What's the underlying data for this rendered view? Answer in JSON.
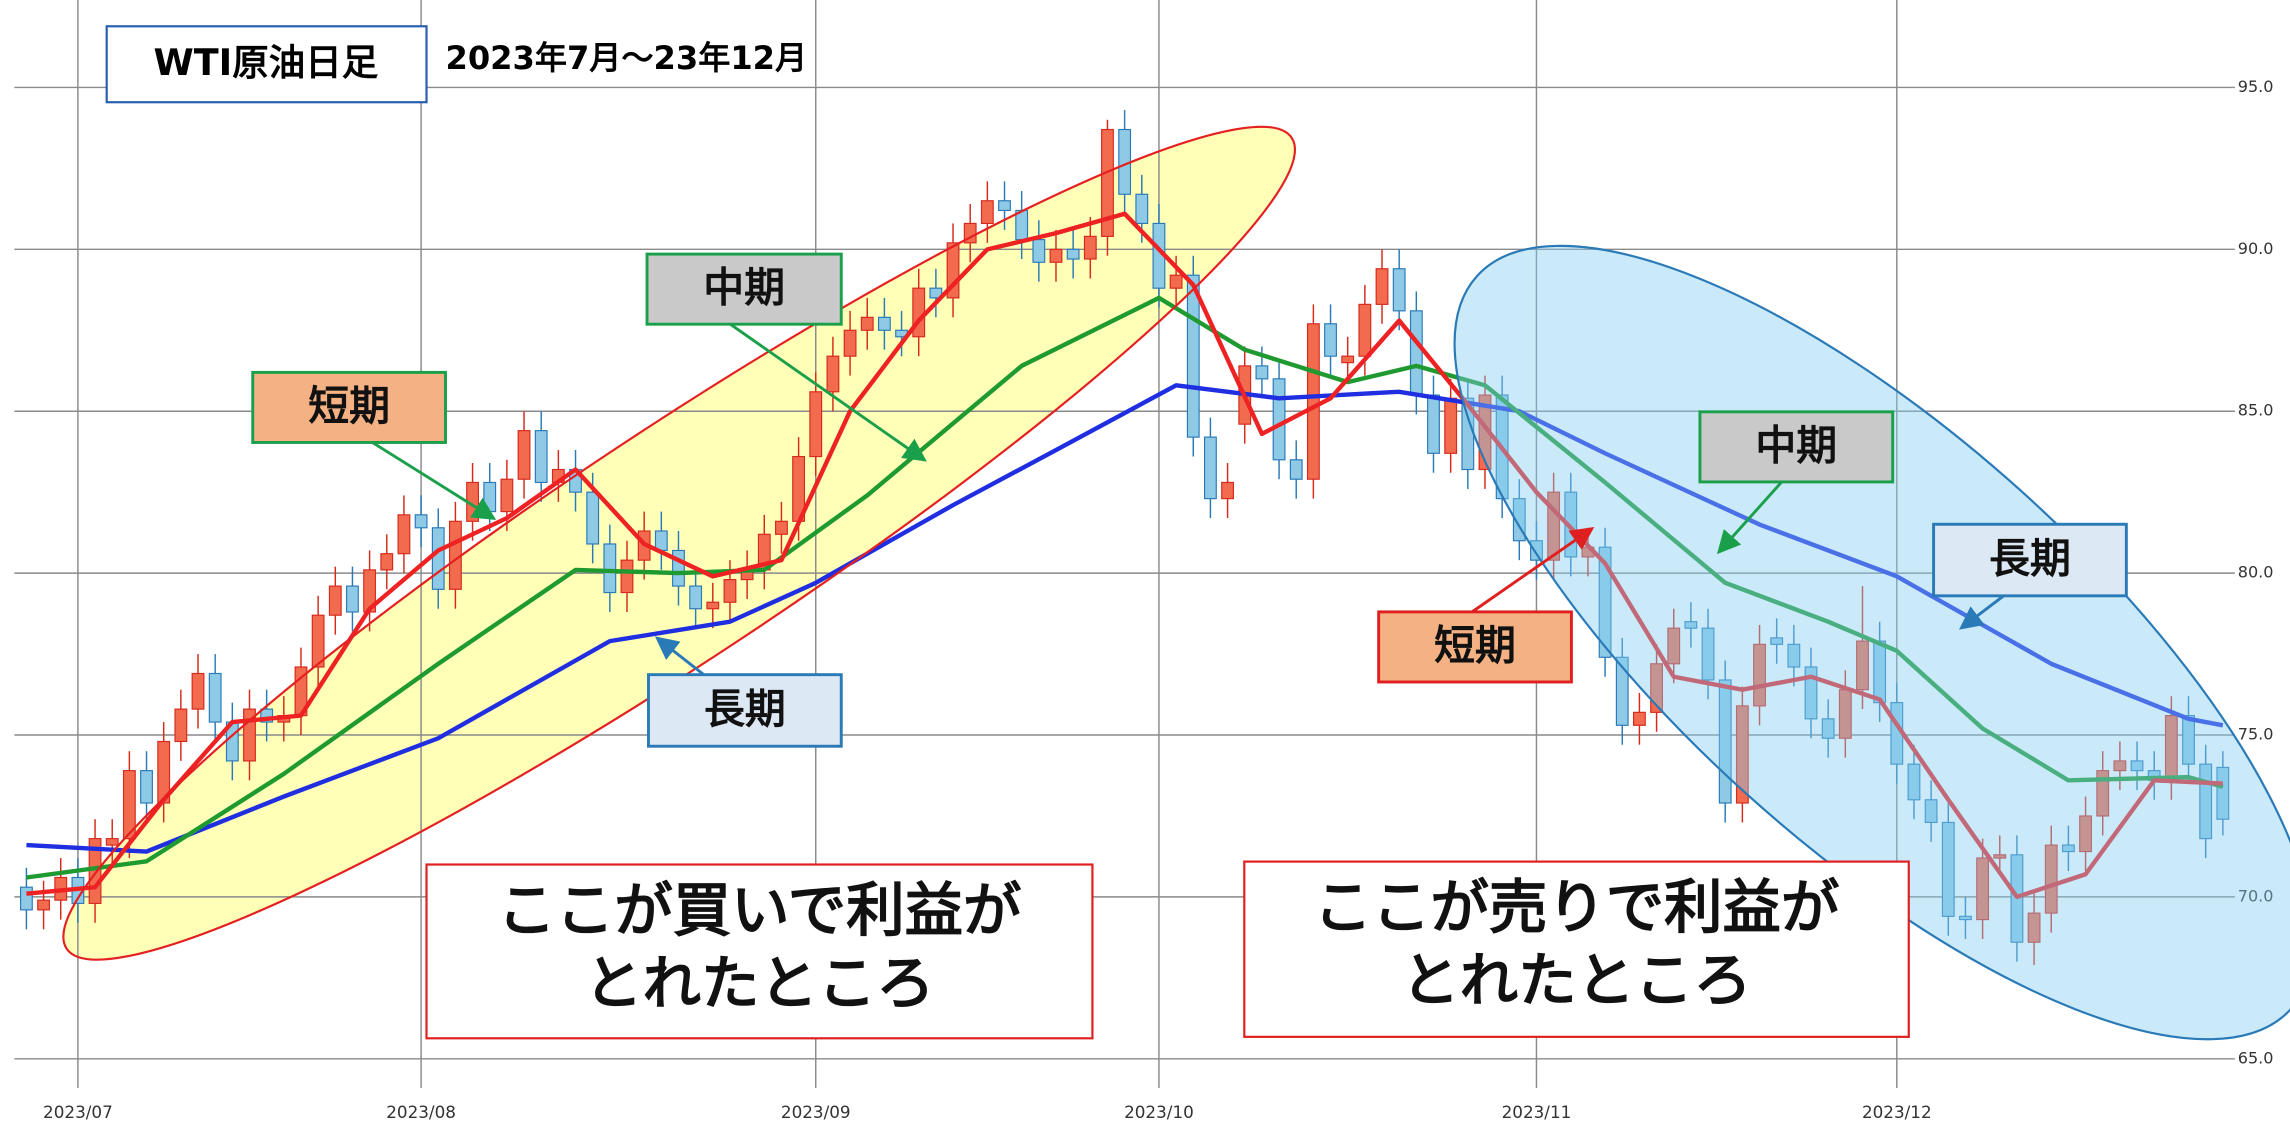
{
  "chart_data": {
    "type": "candlestick",
    "title": "WTI原油日足",
    "subtitle": "2023年7月～23年12月",
    "xlim": [
      -0.7,
      128.7
    ],
    "ylim": [
      64.1,
      97.7
    ],
    "xticks": [
      {
        "value": 3,
        "label": "2023/07"
      },
      {
        "value": 23,
        "label": "2023/08"
      },
      {
        "value": 46,
        "label": "2023/09"
      },
      {
        "value": 66,
        "label": "2023/10"
      },
      {
        "value": 88,
        "label": "2023/11"
      },
      {
        "value": 109,
        "label": "2023/12"
      }
    ],
    "yticks": [
      {
        "value": 65,
        "label": "65.0"
      },
      {
        "value": 70,
        "label": "70.0"
      },
      {
        "value": 75,
        "label": "75.0"
      },
      {
        "value": 80,
        "label": "80.0"
      },
      {
        "value": 85,
        "label": "85.0"
      },
      {
        "value": 90,
        "label": "90.0"
      },
      {
        "value": 95,
        "label": "95.0"
      }
    ],
    "grid": true,
    "up_color": "#f26b4f",
    "up_edge": "#d62a1c",
    "down_color": "#8ecae6",
    "down_edge": "#2a7ab8",
    "ohlc": [
      [
        70.3,
        70.9,
        69.0,
        69.6
      ],
      [
        69.6,
        70.5,
        69.0,
        69.9
      ],
      [
        69.9,
        71.2,
        69.3,
        70.6
      ],
      [
        70.6,
        71.2,
        69.2,
        69.8
      ],
      [
        69.8,
        72.4,
        69.2,
        71.8
      ],
      [
        71.6,
        72.4,
        71.0,
        71.8
      ],
      [
        71.8,
        74.5,
        71.2,
        73.9
      ],
      [
        73.9,
        74.5,
        72.3,
        72.9
      ],
      [
        72.9,
        75.4,
        72.3,
        74.8
      ],
      [
        74.8,
        76.4,
        74.2,
        75.8
      ],
      [
        75.8,
        77.5,
        75.2,
        76.9
      ],
      [
        76.9,
        77.5,
        74.8,
        75.4
      ],
      [
        75.4,
        76.0,
        73.6,
        74.2
      ],
      [
        74.2,
        76.4,
        73.6,
        75.8
      ],
      [
        75.8,
        76.4,
        74.8,
        75.4
      ],
      [
        75.4,
        76.2,
        74.8,
        75.6
      ],
      [
        75.6,
        77.7,
        75.0,
        77.1
      ],
      [
        77.1,
        79.3,
        76.5,
        78.7
      ],
      [
        78.7,
        80.2,
        78.1,
        79.6
      ],
      [
        79.6,
        80.2,
        78.2,
        78.8
      ],
      [
        78.8,
        80.7,
        78.2,
        80.1
      ],
      [
        80.1,
        81.2,
        79.5,
        80.6
      ],
      [
        80.6,
        82.4,
        80.0,
        81.8
      ],
      [
        81.8,
        82.4,
        80.8,
        81.4
      ],
      [
        81.4,
        82.0,
        78.9,
        79.5
      ],
      [
        79.5,
        82.2,
        78.9,
        81.6
      ],
      [
        81.6,
        83.4,
        81.0,
        82.8
      ],
      [
        82.8,
        83.4,
        81.3,
        81.9
      ],
      [
        81.9,
        83.5,
        81.3,
        82.9
      ],
      [
        82.9,
        85.0,
        82.3,
        84.4
      ],
      [
        84.4,
        85.0,
        82.2,
        82.8
      ],
      [
        82.8,
        83.8,
        82.2,
        83.2
      ],
      [
        83.2,
        83.8,
        81.9,
        82.5
      ],
      [
        82.5,
        83.1,
        80.3,
        80.9
      ],
      [
        80.9,
        81.5,
        78.8,
        79.4
      ],
      [
        79.4,
        81.0,
        78.8,
        80.4
      ],
      [
        80.4,
        81.9,
        79.8,
        81.3
      ],
      [
        81.3,
        81.9,
        80.1,
        80.7
      ],
      [
        80.7,
        81.3,
        79.0,
        79.6
      ],
      [
        79.6,
        80.2,
        78.3,
        78.9
      ],
      [
        78.9,
        79.7,
        78.3,
        79.1
      ],
      [
        79.1,
        80.4,
        78.5,
        79.8
      ],
      [
        79.8,
        80.7,
        79.2,
        80.1
      ],
      [
        80.1,
        81.8,
        79.5,
        81.2
      ],
      [
        81.2,
        82.2,
        80.6,
        81.6
      ],
      [
        81.6,
        84.2,
        81.0,
        83.6
      ],
      [
        83.6,
        86.2,
        83.0,
        85.6
      ],
      [
        85.6,
        87.3,
        85.0,
        86.7
      ],
      [
        86.7,
        88.1,
        86.1,
        87.5
      ],
      [
        87.5,
        88.5,
        86.9,
        87.9
      ],
      [
        87.9,
        88.5,
        86.9,
        87.5
      ],
      [
        87.5,
        88.1,
        86.7,
        87.3
      ],
      [
        87.3,
        89.4,
        86.7,
        88.8
      ],
      [
        88.8,
        89.4,
        87.9,
        88.5
      ],
      [
        88.5,
        90.8,
        87.9,
        90.2
      ],
      [
        90.2,
        91.4,
        89.6,
        90.8
      ],
      [
        90.8,
        92.1,
        90.2,
        91.5
      ],
      [
        91.5,
        92.1,
        90.6,
        91.2
      ],
      [
        91.2,
        91.8,
        89.7,
        90.3
      ],
      [
        90.3,
        90.9,
        89.0,
        89.6
      ],
      [
        89.6,
        90.6,
        89.0,
        90.0
      ],
      [
        90.0,
        90.6,
        89.1,
        89.7
      ],
      [
        89.7,
        91.0,
        89.1,
        90.4
      ],
      [
        90.4,
        94.0,
        89.8,
        93.7
      ],
      [
        93.7,
        94.3,
        91.1,
        91.7
      ],
      [
        91.7,
        92.3,
        90.2,
        90.8
      ],
      [
        90.8,
        91.4,
        88.2,
        88.8
      ],
      [
        88.8,
        89.8,
        88.2,
        89.2
      ],
      [
        89.2,
        89.8,
        83.6,
        84.2
      ],
      [
        84.2,
        84.8,
        81.7,
        82.3
      ],
      [
        82.3,
        83.4,
        81.7,
        82.8
      ],
      [
        84.6,
        87.0,
        84.0,
        86.4
      ],
      [
        86.4,
        87.0,
        85.4,
        86.0
      ],
      [
        86.0,
        86.6,
        82.9,
        83.5
      ],
      [
        83.5,
        84.1,
        82.3,
        82.9
      ],
      [
        82.9,
        88.3,
        82.3,
        87.7
      ],
      [
        87.7,
        88.3,
        86.1,
        86.7
      ],
      [
        86.5,
        87.3,
        85.9,
        86.7
      ],
      [
        86.7,
        88.9,
        86.1,
        88.3
      ],
      [
        88.3,
        90.0,
        87.7,
        89.4
      ],
      [
        89.4,
        90.0,
        87.5,
        88.1
      ],
      [
        88.1,
        88.7,
        84.9,
        85.5
      ],
      [
        85.5,
        86.1,
        83.1,
        83.7
      ],
      [
        83.7,
        86.0,
        83.1,
        85.4
      ],
      [
        85.4,
        86.0,
        82.6,
        83.2
      ],
      [
        83.2,
        86.1,
        82.6,
        85.5
      ],
      [
        85.5,
        86.1,
        81.7,
        82.3
      ],
      [
        82.3,
        82.9,
        80.4,
        81.0
      ],
      [
        81.0,
        81.6,
        79.8,
        80.4
      ],
      [
        80.4,
        83.1,
        79.8,
        82.5
      ],
      [
        82.5,
        83.1,
        79.9,
        80.5
      ],
      [
        80.5,
        81.4,
        79.9,
        80.8
      ],
      [
        80.8,
        81.4,
        76.8,
        77.4
      ],
      [
        77.4,
        78.0,
        74.7,
        75.3
      ],
      [
        75.3,
        76.3,
        74.7,
        75.7
      ],
      [
        75.7,
        77.8,
        75.1,
        77.2
      ],
      [
        77.2,
        78.9,
        76.6,
        78.3
      ],
      [
        78.5,
        79.1,
        77.7,
        78.3
      ],
      [
        78.3,
        78.9,
        76.1,
        76.7
      ],
      [
        76.7,
        77.3,
        72.3,
        72.9
      ],
      [
        72.9,
        76.5,
        72.3,
        75.9
      ],
      [
        75.9,
        78.4,
        75.3,
        77.8
      ],
      [
        78.0,
        78.6,
        77.2,
        77.8
      ],
      [
        77.8,
        78.4,
        76.5,
        77.1
      ],
      [
        77.1,
        77.7,
        74.9,
        75.5
      ],
      [
        75.5,
        76.1,
        74.3,
        74.9
      ],
      [
        74.9,
        77.0,
        74.3,
        76.4
      ],
      [
        76.4,
        79.6,
        75.8,
        77.9
      ],
      [
        77.9,
        78.5,
        75.4,
        76.0
      ],
      [
        76.0,
        76.6,
        73.5,
        74.1
      ],
      [
        74.1,
        74.7,
        72.4,
        73.0
      ],
      [
        73.0,
        73.6,
        71.7,
        72.3
      ],
      [
        72.3,
        72.9,
        68.8,
        69.4
      ],
      [
        69.4,
        70.0,
        68.7,
        69.3
      ],
      [
        69.3,
        71.8,
        68.7,
        71.2
      ],
      [
        71.2,
        71.9,
        70.7,
        71.3
      ],
      [
        71.3,
        71.9,
        68.0,
        68.6
      ],
      [
        68.6,
        70.1,
        67.9,
        69.5
      ],
      [
        69.5,
        72.2,
        68.9,
        71.6
      ],
      [
        71.6,
        72.2,
        70.8,
        71.4
      ],
      [
        71.4,
        73.1,
        70.8,
        72.5
      ],
      [
        72.5,
        74.5,
        71.9,
        73.9
      ],
      [
        73.9,
        74.8,
        73.3,
        74.2
      ],
      [
        74.2,
        74.8,
        73.3,
        73.9
      ],
      [
        73.9,
        74.5,
        73.0,
        73.6
      ],
      [
        73.6,
        76.2,
        73.0,
        75.6
      ],
      [
        75.6,
        76.2,
        73.5,
        74.1
      ],
      [
        74.1,
        74.7,
        71.2,
        71.8
      ],
      [
        74.0,
        74.5,
        71.9,
        72.4
      ]
    ],
    "lines": [
      {
        "color": "#1f2ee0",
        "x": [
          0,
          7,
          15,
          24,
          34,
          41,
          46,
          54,
          60,
          67,
          73,
          80,
          87,
          92,
          101,
          109,
          118,
          126,
          128
        ],
        "values": [
          71.6,
          71.4,
          73.1,
          74.9,
          77.9,
          78.5,
          79.7,
          82.1,
          83.8,
          85.8,
          85.4,
          85.6,
          85.0,
          83.7,
          81.5,
          79.9,
          77.2,
          75.5,
          75.3
        ]
      },
      {
        "color": "#1f9a30",
        "x": [
          0,
          7,
          15,
          24,
          32,
          38,
          43,
          49,
          58,
          66,
          71,
          77,
          81,
          85,
          92,
          99,
          105,
          109,
          114,
          119,
          126,
          128
        ],
        "values": [
          70.6,
          71.1,
          73.8,
          77.2,
          80.1,
          80.0,
          80.1,
          82.4,
          86.4,
          88.5,
          86.9,
          85.9,
          86.4,
          85.8,
          82.8,
          79.7,
          78.5,
          77.6,
          75.2,
          73.6,
          73.7,
          73.4
        ]
      },
      {
        "color": "#ee2222",
        "x": [
          0,
          4,
          8,
          12,
          16,
          20,
          24,
          28,
          32,
          36,
          40,
          44,
          48,
          52,
          56,
          60,
          64,
          68,
          72,
          76,
          80,
          84,
          88,
          92,
          96,
          100,
          104,
          108,
          112,
          116,
          120,
          124,
          128
        ],
        "values": [
          70.1,
          70.3,
          73.0,
          75.4,
          75.6,
          78.9,
          80.7,
          81.7,
          83.2,
          80.9,
          79.9,
          80.4,
          85.0,
          87.8,
          90.0,
          90.5,
          91.1,
          88.9,
          84.3,
          85.4,
          87.8,
          85.2,
          82.5,
          80.3,
          76.8,
          76.4,
          76.8,
          76.1,
          73.0,
          70.0,
          70.7,
          73.6,
          73.5
        ]
      }
    ],
    "annotations": [
      "短期",
      "中期",
      "長期",
      "中期",
      "長期",
      "短期"
    ],
    "notes": [
      [
        "ここが買いで利益が",
        "とれたところ"
      ],
      [
        "ここが売りで利益が",
        "とれたところ"
      ]
    ]
  }
}
